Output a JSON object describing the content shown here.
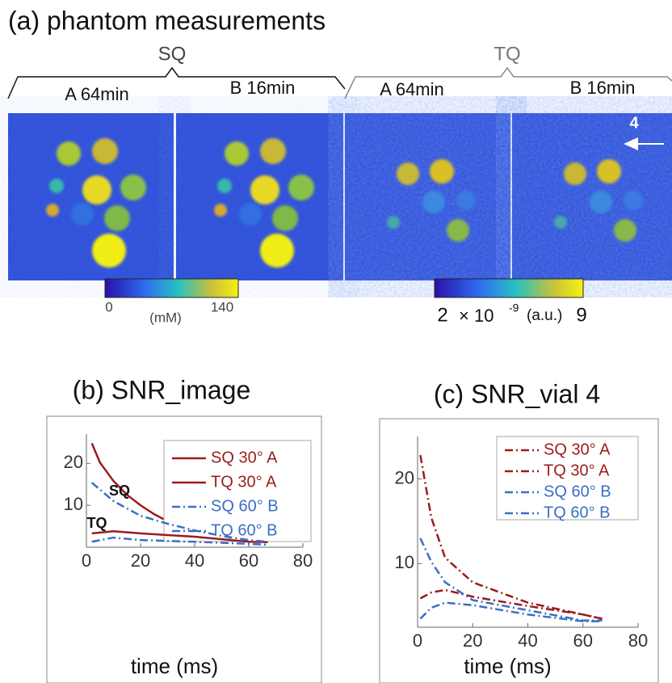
{
  "panel_a": {
    "title": "(a) phantom measurements",
    "groups": [
      "SQ",
      "TQ"
    ],
    "image_labels": [
      "A 64min",
      "B 16min",
      "A 64min",
      "B 16min"
    ],
    "colorbar_left": {
      "min_label": "0",
      "unit": "(mM)",
      "max_label": "140"
    },
    "colorbar_right": {
      "min_label": "2",
      "multiplier": "× 10",
      "exponent": "-9",
      "unit": "(a.u.)",
      "max_label": "9"
    },
    "arrow_label": "4"
  },
  "chart_data": [
    {
      "type": "line",
      "title": "(b) SNR_image",
      "xlabel": "time (ms)",
      "xlim": [
        0,
        80
      ],
      "xticks": [
        0,
        20,
        40,
        60,
        80
      ],
      "ylim": [
        0,
        27
      ],
      "yticks": [
        10,
        20
      ],
      "annotations": [
        "SQ",
        "TQ"
      ],
      "series": [
        {
          "name": "SQ 30° A",
          "color": "#9b1c1c",
          "dash": "solid",
          "x": [
            2,
            5,
            10,
            15,
            20,
            25,
            30,
            40,
            50,
            60,
            67
          ],
          "values": [
            24.8,
            20.2,
            15.8,
            12.5,
            10,
            7.9,
            6.2,
            4,
            2.5,
            1.5,
            1.3
          ]
        },
        {
          "name": "TQ 30° A",
          "color": "#9b1c1c",
          "dash": "solid",
          "x": [
            2,
            10,
            20,
            30,
            40,
            50,
            60,
            67
          ],
          "values": [
            3.3,
            3.8,
            3.3,
            2.9,
            2.5,
            1.9,
            1.3,
            1.2
          ]
        },
        {
          "name": "SQ 60° B",
          "color": "#3a6fc4",
          "dash": "dashdot",
          "x": [
            2,
            10,
            20,
            30,
            40,
            50,
            60,
            67
          ],
          "values": [
            15.4,
            11,
            7.5,
            5.6,
            4,
            2.7,
            1.7,
            1.3
          ]
        },
        {
          "name": "TQ 60° B",
          "color": "#3a6fc4",
          "dash": "dashdot",
          "x": [
            2,
            10,
            20,
            40,
            60,
            67
          ],
          "values": [
            1.3,
            2.3,
            1.7,
            1.3,
            0.8,
            0.6
          ]
        }
      ]
    },
    {
      "type": "line",
      "title": "(c) SNR_vial 4",
      "xlabel": "time (ms)",
      "xlim": [
        0,
        80
      ],
      "xticks": [
        0,
        20,
        40,
        60,
        80
      ],
      "ylim": [
        2.5,
        25
      ],
      "yticks": [
        10,
        20
      ],
      "series": [
        {
          "name": "SQ 30° A",
          "color": "#9b1c1c",
          "dash": "dashdot",
          "x": [
            1,
            5,
            10,
            20,
            40,
            60,
            67
          ],
          "values": [
            22.8,
            15.4,
            10.7,
            7.8,
            5.4,
            4,
            3.5
          ]
        },
        {
          "name": "TQ 30° A",
          "color": "#9b1c1c",
          "dash": "dashdot",
          "x": [
            1,
            5,
            10,
            20,
            40,
            60,
            67
          ],
          "values": [
            5.9,
            6.6,
            6.9,
            6.1,
            5,
            4,
            3.5
          ]
        },
        {
          "name": "SQ 60° B",
          "color": "#3a6fc4",
          "dash": "dashdot",
          "x": [
            1,
            5,
            10,
            20,
            40,
            60,
            67
          ],
          "values": [
            13,
            10.2,
            7.8,
            5.7,
            4.5,
            3.3,
            3.3
          ]
        },
        {
          "name": "TQ 60° B",
          "color": "#3a6fc4",
          "dash": "dashdot",
          "x": [
            1,
            5,
            10,
            20,
            40,
            60,
            67
          ],
          "values": [
            3.5,
            4.8,
            5.4,
            5.1,
            4,
            3.2,
            3.2
          ]
        }
      ]
    }
  ]
}
